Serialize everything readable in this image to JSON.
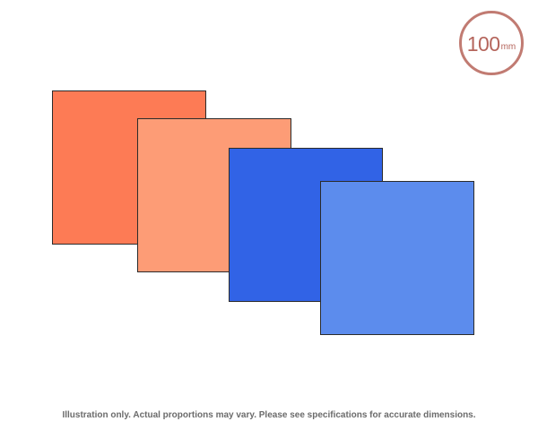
{
  "size_badge": {
    "value": "100",
    "unit": "mm"
  },
  "swatches": [
    {
      "color": "#fd7b55"
    },
    {
      "color": "#fd9c76"
    },
    {
      "color": "#3163e6"
    },
    {
      "color": "#5c8ced"
    }
  ],
  "disclaimer": "Illustration only. Actual proportions may vary. Please see specifications for accurate dimensions."
}
